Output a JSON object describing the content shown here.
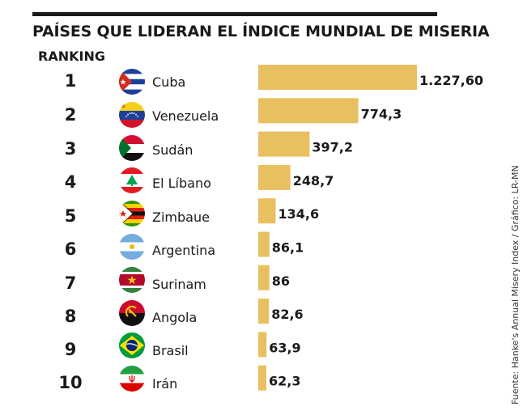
{
  "title": "PAÍSES QUE LIDERAN EL ÍNDICE MUNDIAL DE MISERIA",
  "ranking_label": "RANKING",
  "source": "Fuente: Hanke's Annual Misery Index  / Gráfico: LR-MN",
  "bar_color": "#E9C060",
  "rows": [
    {
      "rank": "1",
      "country": "Cuba",
      "flag": "cuba-flag-icon"
    },
    {
      "rank": "2",
      "country": "Venezuela",
      "flag": "venezuela-flag-icon"
    },
    {
      "rank": "3",
      "country": "Sudán",
      "flag": "sudan-flag-icon"
    },
    {
      "rank": "4",
      "country": "El Líbano",
      "flag": "lebanon-flag-icon"
    },
    {
      "rank": "5",
      "country": "Zimbaue",
      "flag": "zimbabwe-flag-icon"
    },
    {
      "rank": "6",
      "country": "Argentina",
      "flag": "argentina-flag-icon"
    },
    {
      "rank": "7",
      "country": "Surinam",
      "flag": "suriname-flag-icon"
    },
    {
      "rank": "8",
      "country": "Angola",
      "flag": "angola-flag-icon"
    },
    {
      "rank": "9",
      "country": "Brasil",
      "flag": "brazil-flag-icon"
    },
    {
      "rank": "10",
      "country": "Irán",
      "flag": "iran-flag-icon"
    }
  ],
  "chart_data": {
    "type": "bar",
    "orientation": "horizontal",
    "title": "PAÍSES QUE LIDERAN EL ÍNDICE MUNDIAL DE MISERIA",
    "categories": [
      "Cuba",
      "Venezuela",
      "Sudán",
      "El Líbano",
      "Zimbaue",
      "Argentina",
      "Surinam",
      "Angola",
      "Brasil",
      "Irán"
    ],
    "values": [
      1227.6,
      774.3,
      397.2,
      248.7,
      134.6,
      86.1,
      86,
      82.6,
      63.9,
      62.3
    ],
    "labels": [
      "1.227,60",
      "774,3",
      "397,2",
      "248,7",
      "134,6",
      "86,1",
      "86",
      "82,6",
      "63,9",
      "62,3"
    ],
    "xlabel": "",
    "ylabel": "",
    "xlim": [
      0,
      1227.6
    ],
    "grid": false,
    "legend": "none"
  }
}
